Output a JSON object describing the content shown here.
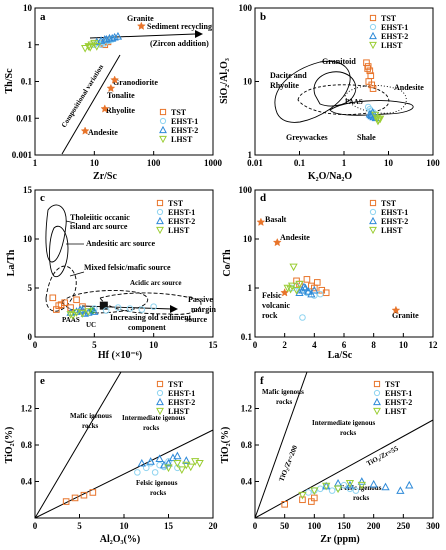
{
  "legend_items": [
    {
      "key": "tst",
      "label": "TST",
      "color": "#e8742a",
      "marker": "square"
    },
    {
      "key": "ehst1",
      "label": "EHST-1",
      "color": "#8fd4f0",
      "marker": "circle"
    },
    {
      "key": "ehst2",
      "label": "EHST-2",
      "color": "#2e8ad8",
      "marker": "triangle"
    },
    {
      "key": "lhst",
      "label": "LHST",
      "color": "#9acd32",
      "marker": "triangle-down"
    }
  ],
  "chart_data": [
    {
      "id": "a",
      "type": "scatter",
      "letter": "a",
      "xlabel": "Zr/Sc",
      "ylabel": "Th/Sc",
      "xscale": "log",
      "yscale": "log",
      "xlim": [
        1,
        1000
      ],
      "ylim": [
        0.001,
        10
      ],
      "xticks": [
        "1",
        "10",
        "100",
        "1000"
      ],
      "yticks": [
        "0.001",
        "0.01",
        "0.1",
        "1",
        "10"
      ],
      "legend_position": "bottom-right",
      "series": [
        {
          "key": "tst",
          "x": [
            14,
            17,
            15,
            16
          ],
          "y": [
            1.1,
            1.2,
            1.0,
            1.3
          ]
        },
        {
          "key": "ehst1",
          "x": [
            10,
            12,
            14,
            17,
            20,
            18,
            15,
            13
          ],
          "y": [
            1.0,
            1.1,
            1.2,
            1.3,
            1.4,
            1.3,
            1.1,
            1.0
          ]
        },
        {
          "key": "ehst2",
          "x": [
            11,
            13,
            15,
            18,
            22,
            25,
            16,
            20
          ],
          "y": [
            1.2,
            1.3,
            1.4,
            1.5,
            1.6,
            1.7,
            1.4,
            1.5
          ]
        },
        {
          "key": "lhst",
          "x": [
            7,
            8,
            9,
            10,
            11,
            8.5
          ],
          "y": [
            0.8,
            0.9,
            1.0,
            1.1,
            0.9,
            0.85
          ]
        }
      ],
      "references": [
        {
          "label": "Granite",
          "x": 62,
          "y": 3.2
        },
        {
          "label": "Granodiorite",
          "x": 22,
          "y": 0.11
        },
        {
          "label": "Tonalite",
          "x": 19,
          "y": 0.065
        },
        {
          "label": "Rhyolite",
          "x": 15,
          "y": 0.018
        },
        {
          "label": "Andesite",
          "x": 7,
          "y": 0.0045
        }
      ],
      "annotations": [
        "Sediment recycling",
        "(Zircon addition)",
        "Compositional variation"
      ]
    },
    {
      "id": "b",
      "type": "scatter",
      "letter": "b",
      "xlabel": "K₂O/Na₂O",
      "ylabel": "SiO₂/Al₂O₃",
      "xscale": "log",
      "yscale": "log",
      "xlim": [
        0.01,
        100
      ],
      "ylim": [
        1,
        100
      ],
      "xticks": [
        "0.01",
        "0.1",
        "1",
        "10",
        "100"
      ],
      "yticks": [
        "1",
        "10",
        "100"
      ],
      "legend_position": "top-right",
      "series": [
        {
          "key": "tst",
          "x": [
            3.2,
            3.5,
            3.8,
            4.0,
            3.6,
            4.2,
            3.4,
            4.5
          ],
          "y": [
            18,
            16,
            14,
            12,
            10,
            9,
            15,
            8
          ]
        },
        {
          "key": "ehst1",
          "x": [
            3.5,
            4.0,
            4.5,
            5.0,
            3.8
          ],
          "y": [
            4.5,
            4.0,
            3.8,
            3.6,
            4.2
          ]
        },
        {
          "key": "ehst2",
          "x": [
            3.8,
            4.2,
            4.6,
            5.2,
            4.0,
            4.4
          ],
          "y": [
            3.6,
            3.4,
            3.3,
            3.2,
            3.5,
            3.8
          ]
        },
        {
          "key": "lhst",
          "x": [
            5,
            5.5,
            6,
            6.5,
            5.8
          ],
          "y": [
            3.5,
            3.2,
            3.0,
            3.1,
            2.9
          ]
        }
      ],
      "references": [
        {
          "label": "PAAS",
          "x": 2.9,
          "y": 3.4
        }
      ],
      "annotations": [
        "Granitoid",
        "Dacite and",
        "Rhyolite",
        "Andesite",
        "Greywackes",
        "Shale"
      ]
    },
    {
      "id": "c",
      "type": "scatter",
      "letter": "c",
      "xlabel": "Hf (×10⁻⁶)",
      "ylabel": "La/Th",
      "xscale": "linear",
      "yscale": "linear",
      "xlim": [
        0,
        15
      ],
      "ylim": [
        0,
        15
      ],
      "xticks": [
        "0",
        "5",
        "10",
        "15"
      ],
      "yticks": [
        "0",
        "5",
        "10",
        "15"
      ],
      "legend_position": "top-right",
      "series": [
        {
          "key": "tst",
          "x": [
            1.5,
            2,
            2.5,
            3,
            1.8,
            3.5,
            4,
            2.2
          ],
          "y": [
            4,
            3.2,
            3.5,
            3,
            2.8,
            3.8,
            3.1,
            3.3
          ]
        },
        {
          "key": "ehst1",
          "x": [
            4,
            5,
            6,
            7,
            8,
            9,
            10
          ],
          "y": [
            2.8,
            2.9,
            2.7,
            3,
            2.9,
            2.8,
            3.1
          ]
        },
        {
          "key": "ehst2",
          "x": [
            3,
            3.5,
            4,
            4.5,
            5,
            3.8,
            4.2
          ],
          "y": [
            2.5,
            2.6,
            2.7,
            2.5,
            2.6,
            2.8,
            2.4
          ]
        },
        {
          "key": "lhst",
          "x": [
            3,
            3.5,
            4,
            4.5,
            3.2
          ],
          "y": [
            2.3,
            2.5,
            2.4,
            2.6,
            2.2
          ]
        }
      ],
      "references": [
        {
          "label": "PAAS",
          "x": 4.8,
          "y": 2.7,
          "marker": "circle"
        },
        {
          "label": "UC",
          "x": 5.8,
          "y": 3.2,
          "marker": "square"
        }
      ],
      "annotations": [
        "Tholeiitic occanic",
        "island arc source",
        "Andesitic arc source",
        "Mixed felsic/mafic source",
        "Acidic arc source",
        "Passive",
        "margin",
        "source",
        "Increasing old sediment",
        "component"
      ]
    },
    {
      "id": "d",
      "type": "scatter",
      "letter": "d",
      "xlabel": "La/Sc",
      "ylabel": "Co/Th",
      "xscale": "linear",
      "yscale": "log",
      "xlim": [
        0,
        12
      ],
      "ylim": [
        0.1,
        100
      ],
      "xticks": [
        "0",
        "2",
        "4",
        "6",
        "8",
        "10",
        "12"
      ],
      "yticks": [
        "0.1",
        "1",
        "10",
        "100"
      ],
      "legend_position": "top-right",
      "series": [
        {
          "key": "tst",
          "x": [
            3,
            3.5,
            4,
            4.5,
            3.8,
            4.2,
            4.8,
            2.8
          ],
          "y": [
            1.2,
            1.5,
            1.0,
            0.9,
            1.1,
            1.3,
            0.8,
            1.4
          ]
        },
        {
          "key": "ehst1",
          "x": [
            2.5,
            3,
            3.5,
            4,
            3.2,
            2.8,
            3.6,
            4.4
          ],
          "y": [
            1.0,
            0.9,
            0.8,
            0.7,
            0.25,
            1.1,
            0.85,
            0.75
          ]
        },
        {
          "key": "ehst2",
          "x": [
            3,
            3.2,
            3.4,
            3.6,
            3.8,
            4,
            3.3
          ],
          "y": [
            0.8,
            0.9,
            1.0,
            0.85,
            0.75,
            0.9,
            1.05
          ]
        },
        {
          "key": "lhst",
          "x": [
            2.2,
            2.5,
            2.8,
            3,
            2.6,
            2.4
          ],
          "y": [
            1.0,
            1.1,
            0.9,
            1.2,
            2.7,
            0.95
          ]
        }
      ],
      "references": [
        {
          "label": "Basalt",
          "x": 0.4,
          "y": 22
        },
        {
          "label": "Andesite",
          "x": 1.5,
          "y": 8.5
        },
        {
          "label": "Felsic volcanic rock",
          "x": 2.0,
          "y": 0.8
        },
        {
          "label": "Granite",
          "x": 9.5,
          "y": 0.35
        }
      ],
      "annotations": [
        "Felsic",
        "volcanic",
        "rock"
      ]
    },
    {
      "id": "e",
      "type": "scatter",
      "letter": "e",
      "xlabel": "Al₂O₃(%)",
      "ylabel": "TiO₂(%)",
      "xscale": "linear",
      "yscale": "linear",
      "xlim": [
        0,
        20
      ],
      "ylim": [
        0,
        1.6
      ],
      "xticks": [
        "0",
        "5",
        "10",
        "15",
        "20"
      ],
      "yticks": [
        "0.4",
        "0.8",
        "1.2"
      ],
      "legend_position": "top-right",
      "series": [
        {
          "key": "tst",
          "x": [
            3.5,
            4.5,
            5.5,
            6.5
          ],
          "y": [
            0.18,
            0.22,
            0.25,
            0.28
          ]
        },
        {
          "key": "ehst1",
          "x": [
            11.5,
            12.5,
            13,
            14,
            15,
            16,
            13.5,
            14.5
          ],
          "y": [
            0.5,
            0.55,
            0.6,
            0.58,
            0.62,
            0.55,
            0.5,
            0.56
          ]
        },
        {
          "key": "ehst2",
          "x": [
            12,
            13,
            14,
            15,
            16,
            17,
            14.5,
            15.5
          ],
          "y": [
            0.6,
            0.62,
            0.65,
            0.6,
            0.68,
            0.63,
            0.58,
            0.66
          ]
        },
        {
          "key": "lhst",
          "x": [
            15,
            16,
            17,
            18,
            18.5,
            17.5,
            16.5
          ],
          "y": [
            0.55,
            0.6,
            0.58,
            0.62,
            0.6,
            0.56,
            0.53
          ]
        }
      ],
      "annotations": [
        "Mafic igenous",
        "rocks",
        "Intermediate igenous",
        "rocks",
        "Felsic igenous",
        "rocks"
      ]
    },
    {
      "id": "f",
      "type": "scatter",
      "letter": "f",
      "xlabel": "Zr (ppm)",
      "ylabel": "TiO₂(%)",
      "xscale": "linear",
      "yscale": "linear",
      "xlim": [
        0,
        300
      ],
      "ylim": [
        0,
        1.6
      ],
      "xticks": [
        "0",
        "50",
        "100",
        "150",
        "200",
        "250",
        "300"
      ],
      "yticks": [
        "0.4",
        "0.8",
        "1.2"
      ],
      "legend_position": "top-right",
      "series": [
        {
          "key": "tst",
          "x": [
            50,
            80,
            95,
            100
          ],
          "y": [
            0.15,
            0.2,
            0.18,
            0.22
          ]
        },
        {
          "key": "ehst1",
          "x": [
            90,
            100,
            110,
            120,
            130,
            140,
            150,
            160,
            170
          ],
          "y": [
            0.28,
            0.3,
            0.32,
            0.35,
            0.3,
            0.33,
            0.36,
            0.32,
            0.3
          ]
        },
        {
          "key": "ehst2",
          "x": [
            120,
            140,
            160,
            180,
            200,
            220,
            245,
            260
          ],
          "y": [
            0.35,
            0.38,
            0.36,
            0.4,
            0.37,
            0.34,
            0.3,
            0.36
          ]
        },
        {
          "key": "lhst",
          "x": [
            80,
            100,
            120,
            140,
            160,
            180
          ],
          "y": [
            0.25,
            0.3,
            0.35,
            0.32,
            0.38,
            0.36
          ]
        }
      ],
      "annotations": [
        "Mafic igenous",
        "rocks",
        "Intermediate igenous",
        "rocks",
        "Felsic igenous",
        "rocks",
        "TiO₂/Zr=200",
        "TiO₂/Zr=55"
      ]
    }
  ]
}
